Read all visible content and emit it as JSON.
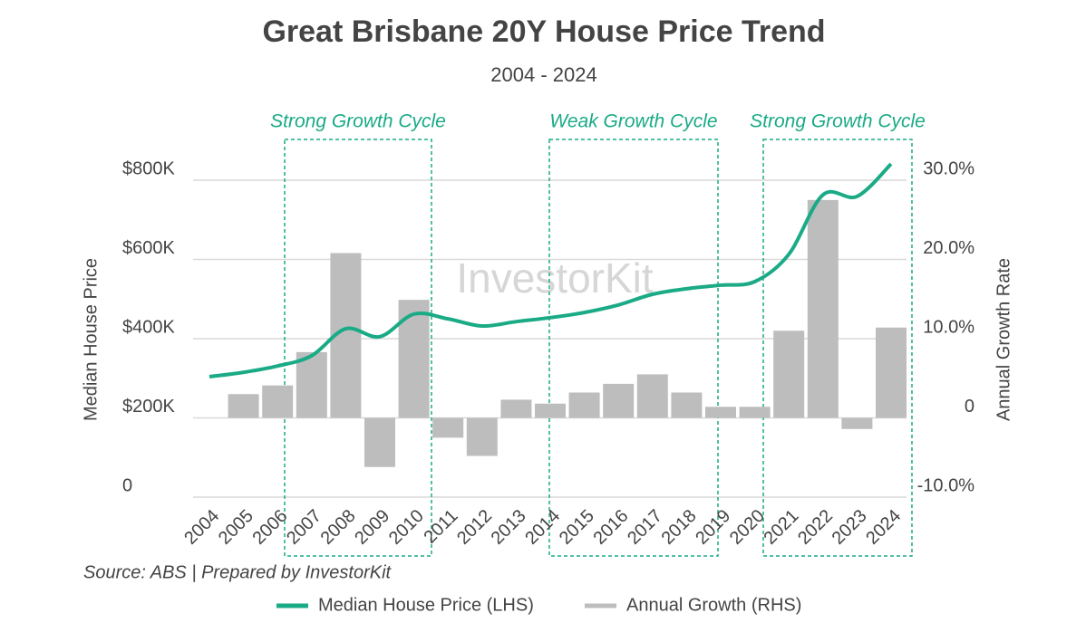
{
  "chart_data": {
    "type": "bar-line",
    "title": "Great Brisbane 20Y House Price Trend",
    "subtitle": "2004 - 2024",
    "y_label": "Median House Price",
    "y2_label": "Annual Growth Rate",
    "source": "Source: ABS | Prepared by InvestorKit",
    "watermark": "InvestorKit",
    "annotations": [
      "Strong Growth Cycle",
      "Weak Growth Cycle",
      "Strong Growth Cycle"
    ],
    "categories": [
      "2004",
      "2005",
      "2006",
      "2007",
      "2008",
      "2009",
      "2010",
      "2011",
      "2012",
      "2013",
      "2014",
      "2015",
      "2016",
      "2017",
      "2018",
      "2019",
      "2020",
      "2021",
      "2022",
      "2023",
      "2024"
    ],
    "series": [
      {
        "name": "Median House Price (LHS)",
        "color": "#1aab86",
        "kind": "line",
        "axis": "y",
        "values": [
          304000,
          315000,
          331000,
          357000,
          425000,
          405000,
          462000,
          450000,
          432000,
          443000,
          453000,
          466000,
          485000,
          512000,
          526000,
          535000,
          544000,
          613000,
          763000,
          759000,
          841000
        ]
      },
      {
        "name": "Annual Growth (RHS)",
        "color": "#bdbdbd",
        "kind": "bar",
        "axis": "y2",
        "values": [
          null,
          3.0,
          4.1,
          8.3,
          20.8,
          -6.2,
          14.9,
          -2.5,
          -4.8,
          2.3,
          1.8,
          3.2,
          4.3,
          5.5,
          3.2,
          1.4,
          1.4,
          11.0,
          27.5,
          -1.4,
          11.4
        ]
      }
    ],
    "ylim": [
      0,
      850000
    ],
    "yticks": [
      0,
      {
        "value": 200000,
        "label": "$200K"
      },
      {
        "value": 400000,
        "label": "$400K"
      },
      {
        "value": 600000,
        "label": "$600K"
      },
      {
        "value": 800000,
        "label": "$800K"
      }
    ],
    "y2lim": [
      -10,
      32.5
    ],
    "y2ticks": [
      {
        "value": -10,
        "label": "-10.0%"
      },
      0,
      {
        "value": 10,
        "label": "10.0%"
      },
      {
        "value": 20,
        "label": "20.0%"
      },
      {
        "value": 30,
        "label": "30.0%"
      }
    ],
    "grid": true,
    "legend": "bottom"
  }
}
